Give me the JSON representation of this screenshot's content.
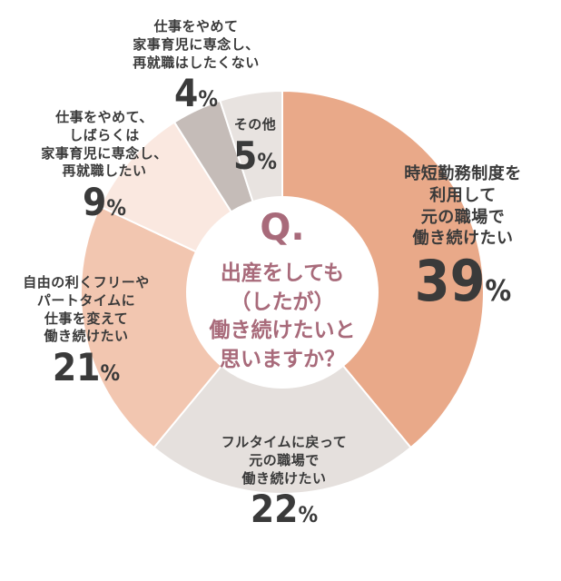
{
  "question": {
    "mark": "Q.",
    "text": "出産をしても\n（したが）\n働き続けたいと\n思いますか？"
  },
  "chart_data": {
    "type": "pie",
    "style": "donut",
    "slices": [
      {
        "label": "時短勤務制度を\n利用して\n元の職場で\n働き続けたい",
        "value": 39,
        "color": "#e9a989"
      },
      {
        "label": "フルタイムに戻って\n元の職場で\n働き続けたい",
        "value": 22,
        "color": "#e5e0dd"
      },
      {
        "label": "自由の利くフリーや\nパートタイムに\n仕事を変えて\n働き続けたい",
        "value": 21,
        "color": "#f2c6b0"
      },
      {
        "label": "仕事をやめて、\nしばらくは\n家事育児に専念し、\n再就職したい",
        "value": 9,
        "color": "#fae8e0"
      },
      {
        "label": "仕事をやめて\n家事育児に専念し、\n再就職はしたくない",
        "value": 4,
        "color": "#c5bcb8"
      },
      {
        "label": "その他",
        "value": 5,
        "color": "#e8e3e0"
      }
    ],
    "unit": "%"
  }
}
